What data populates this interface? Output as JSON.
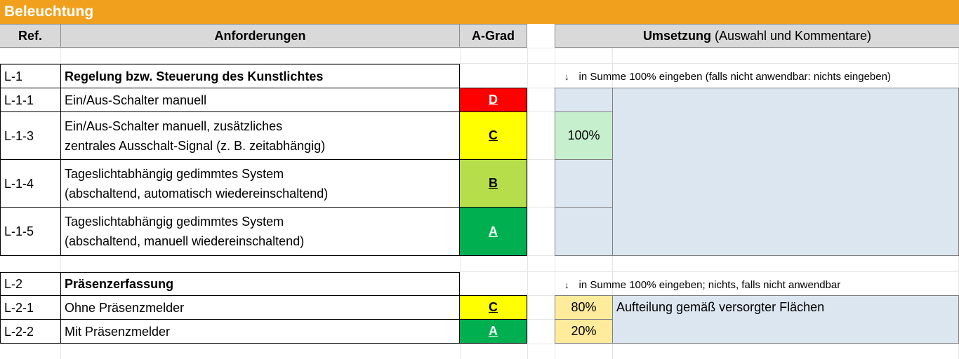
{
  "section_title": "Beleuchtung",
  "headers": {
    "ref": "Ref.",
    "requirements": "Anforderungen",
    "grade": "A-Grad",
    "implementation_bold": "Umsetzung",
    "implementation_rest": " (Auswahl und Kommentare)"
  },
  "groups": [
    {
      "ref": "L-1",
      "title": "Regelung bzw. Steuerung des Kunstlichtes",
      "note": "in Summe 100% eingeben (falls nicht anwendbar: nichts eingeben)",
      "rows": [
        {
          "ref": "L-1-1",
          "text": "Ein/Aus-Schalter manuell",
          "grade": "D",
          "percent": ""
        },
        {
          "ref": "L-1-3",
          "text": "Ein/Aus-Schalter manuell, zusätzliches\nzentrales Ausschalt-Signal (z. B. zeitabhängig)",
          "grade": "C",
          "percent": "100%"
        },
        {
          "ref": "L-1-4",
          "text": "Tageslichtabhängig gedimmtes System\n(abschaltend, automatisch wiedereinschaltend)",
          "grade": "B",
          "percent": ""
        },
        {
          "ref": "L-1-5",
          "text": "Tageslichtabhängig gedimmtes System\n(abschaltend, manuell wiedereinschaltend)",
          "grade": "A",
          "percent": ""
        }
      ],
      "comment": ""
    },
    {
      "ref": "L-2",
      "title": "Präsenzerfassung",
      "note": "in Summe 100% eingeben; nichts, falls nicht anwendbar",
      "rows": [
        {
          "ref": "L-2-1",
          "text": "Ohne Präsenzmelder",
          "grade": "C",
          "percent": "80%"
        },
        {
          "ref": "L-2-2",
          "text": "Mit Präsenzmelder",
          "grade": "A",
          "percent": "20%"
        }
      ],
      "comment": "Aufteilung gemäß versorgter Flächen"
    }
  ],
  "note_icon": "down-arrow-icon",
  "colors": {
    "title_bar": "#f0a01c",
    "grade_D": "#ff0000",
    "grade_C": "#ffff00",
    "grade_B": "#b6dd4a",
    "grade_A": "#00b050",
    "input_blue": "#dce6f0",
    "percent_green": "#c6efce",
    "percent_yellow": "#ffeb9c"
  }
}
